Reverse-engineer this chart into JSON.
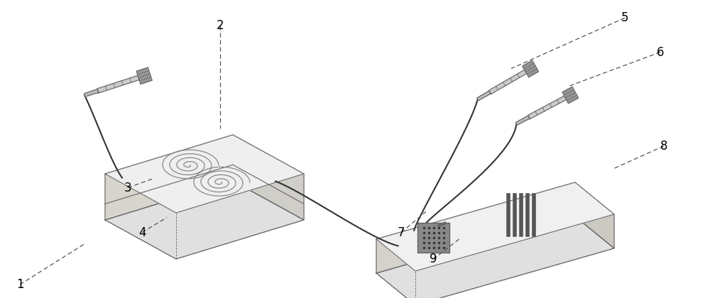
{
  "background_color": "#ffffff",
  "line_color": "#666666",
  "label_color": "#000000",
  "label_fontsize": 12,
  "labels_info": [
    [
      1,
      0.028,
      0.955,
      0.118,
      0.82
    ],
    [
      2,
      0.31,
      0.085,
      0.31,
      0.43
    ],
    [
      3,
      0.18,
      0.63,
      0.215,
      0.6
    ],
    [
      4,
      0.2,
      0.78,
      0.235,
      0.73
    ],
    [
      5,
      0.88,
      0.06,
      0.72,
      0.23
    ],
    [
      6,
      0.93,
      0.175,
      0.8,
      0.29
    ],
    [
      7,
      0.565,
      0.78,
      0.6,
      0.71
    ],
    [
      8,
      0.935,
      0.49,
      0.865,
      0.565
    ],
    [
      9,
      0.61,
      0.87,
      0.648,
      0.8
    ]
  ]
}
